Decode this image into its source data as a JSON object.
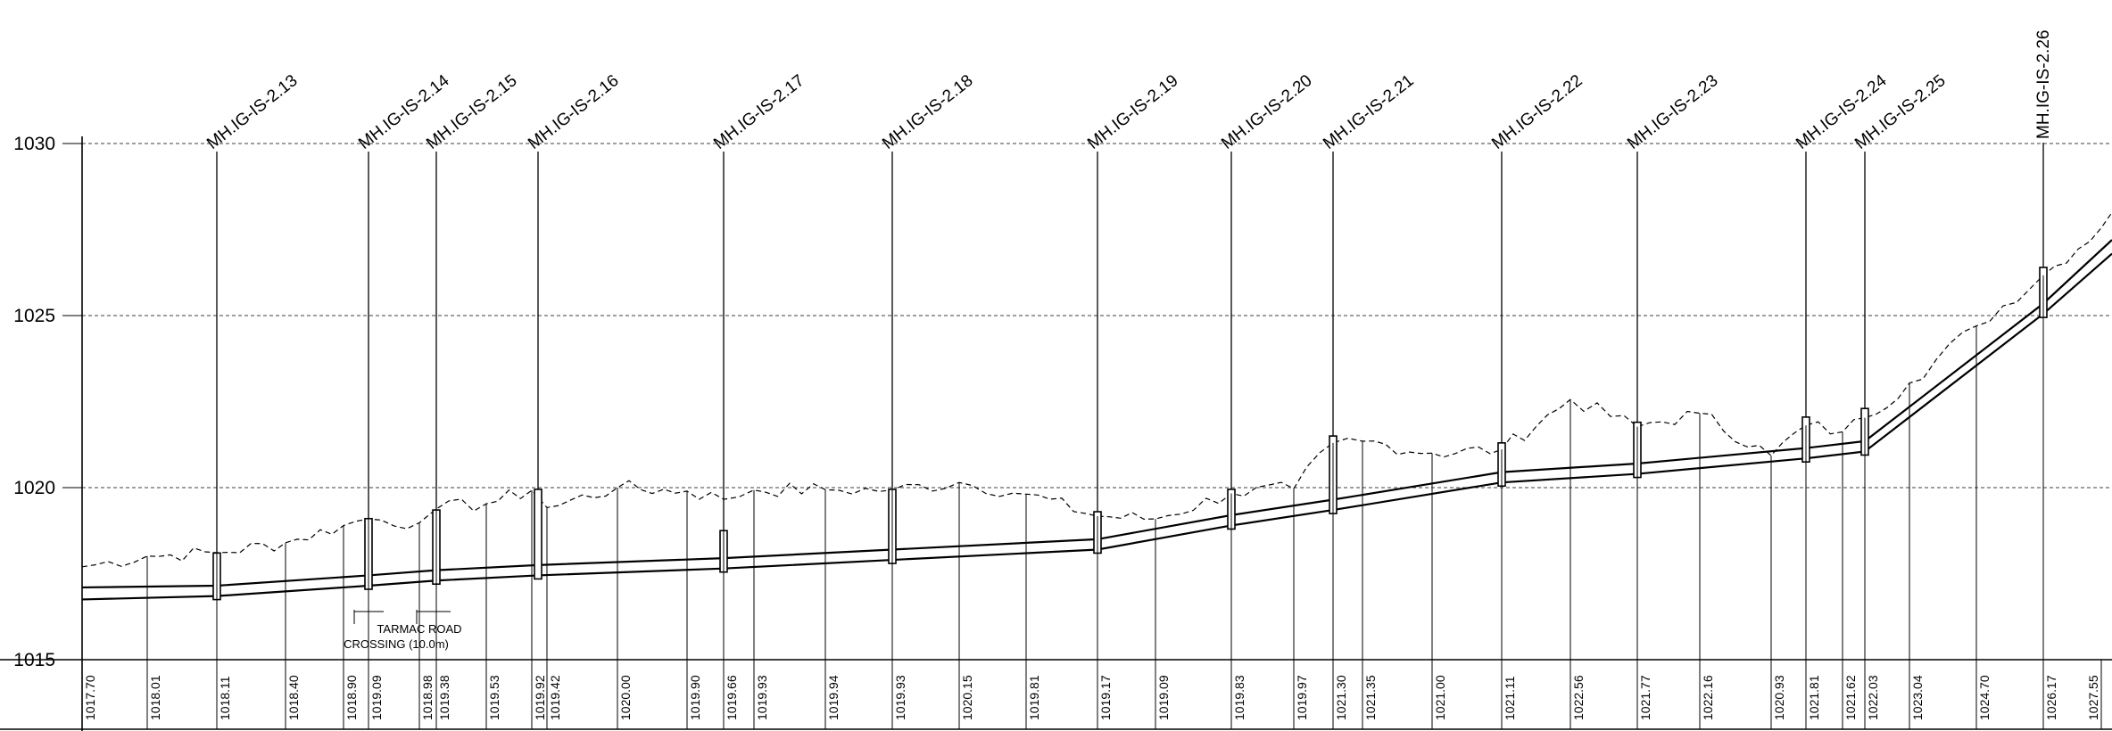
{
  "elevation_axis": {
    "labels": [
      "1030",
      "1025",
      "1020",
      "1015"
    ],
    "values": [
      1030,
      1025,
      1020,
      1015
    ]
  },
  "manholes": [
    {
      "label": "MH.IG-IS-2.13"
    },
    {
      "label": "MH.IG-IS-2.14"
    },
    {
      "label": "MH.IG-IS-2.15"
    },
    {
      "label": "MH.IG-IS-2.16"
    },
    {
      "label": "MH.IG-IS-2.17"
    },
    {
      "label": "MH.IG-IS-2.18"
    },
    {
      "label": "MH.IG-IS-2.19"
    },
    {
      "label": "MH.IG-IS-2.20"
    },
    {
      "label": "MH.IG-IS-2.21"
    },
    {
      "label": "MH.IG-IS-2.22"
    },
    {
      "label": "MH.IG-IS-2.23"
    },
    {
      "label": "MH.IG-IS-2.24"
    },
    {
      "label": "MH.IG-IS-2.25"
    },
    {
      "label": "MH.IG-IS-2.26"
    }
  ],
  "ground_levels": [
    "1017.70",
    "1018.01",
    "1018.11",
    "1018.40",
    "1018.90",
    "1019.09",
    "1018.98",
    "1019.38",
    "1019.53",
    "1019.92",
    "1019.42",
    "1020.00",
    "1019.90",
    "1019.66",
    "1019.93",
    "1019.94",
    "1019.93",
    "1020.15",
    "1019.81",
    "1019.17",
    "1019.09",
    "1019.83",
    "1019.97",
    "1021.30",
    "1021.35",
    "1021.00",
    "1021.11",
    "1022.56",
    "1021.77",
    "1022.16",
    "1020.93",
    "1021.81",
    "1021.62",
    "1022.03",
    "1023.04",
    "1024.70",
    "1026.17",
    "1027.55"
  ],
  "annotation": {
    "line1": "TARMAC  ROAD",
    "line2": "CROSSING  (10.0m)"
  }
}
